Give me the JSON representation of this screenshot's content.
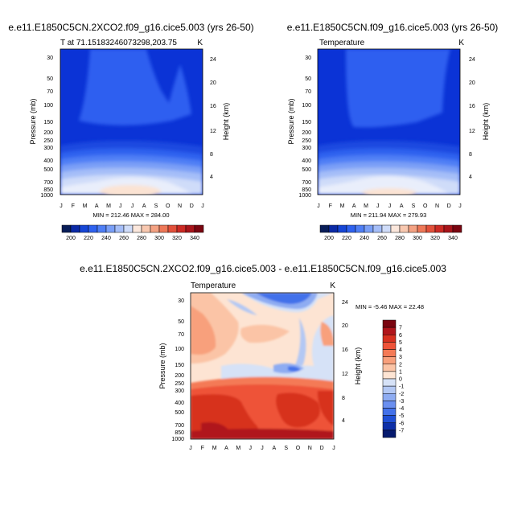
{
  "chart_data": [
    {
      "type": "heatmap",
      "title": "e.e11.E1850C5CN.2XCO2.f09_g16.cice5.003 (yrs 26-50)",
      "subtitle_left": "T at 71.15183246073298,203.75",
      "subtitle_right": "K",
      "xlabel": "",
      "ylabel": "Pressure (mb)",
      "ylabel_right": "Height (km)",
      "x_ticks": [
        "J",
        "F",
        "M",
        "A",
        "M",
        "J",
        "J",
        "A",
        "S",
        "O",
        "N",
        "D",
        "J"
      ],
      "y_ticks": [
        "30",
        "50",
        "70",
        "100",
        "150",
        "200",
        "250",
        "300",
        "400",
        "500",
        "700",
        "850",
        "1000"
      ],
      "y_ticks_right": [
        "24",
        "20",
        "16",
        "12",
        "8",
        "4"
      ],
      "min": 212.46,
      "max": 284.0,
      "stats_label": "MIN = 212.46  MAX = 284.00",
      "colorbar": {
        "orientation": "horizontal",
        "labels": [
          "200",
          "220",
          "240",
          "260",
          "280",
          "300",
          "320",
          "340"
        ],
        "colors": [
          "#081d58",
          "#0b2aa6",
          "#1646d6",
          "#2f62ef",
          "#4f7ff5",
          "#7a9ff7",
          "#a5bef8",
          "#cfdcf9",
          "#fbe7dc",
          "#f8c8b0",
          "#f4a283",
          "#ee7858",
          "#e2503a",
          "#cc2a24",
          "#a8141a",
          "#7a0510"
        ]
      }
    },
    {
      "type": "heatmap",
      "title": "e.e11.E1850C5CN.f09_g16.cice5.003 (yrs 26-50)",
      "subtitle_left": "Temperature",
      "subtitle_right": "K",
      "xlabel": "",
      "ylabel": "Pressure (mb)",
      "ylabel_right": "Height (km)",
      "x_ticks": [
        "J",
        "F",
        "M",
        "A",
        "M",
        "J",
        "J",
        "A",
        "S",
        "O",
        "N",
        "D",
        "J"
      ],
      "y_ticks": [
        "30",
        "50",
        "70",
        "100",
        "150",
        "200",
        "250",
        "300",
        "400",
        "500",
        "700",
        "850",
        "1000"
      ],
      "y_ticks_right": [
        "24",
        "20",
        "16",
        "12",
        "8",
        "4"
      ],
      "min": 211.94,
      "max": 279.93,
      "stats_label": "MIN = 211.94  MAX = 279.93",
      "colorbar": {
        "orientation": "horizontal",
        "labels": [
          "200",
          "220",
          "240",
          "260",
          "280",
          "300",
          "320",
          "340"
        ],
        "colors": [
          "#081d58",
          "#0b2aa6",
          "#1646d6",
          "#2f62ef",
          "#4f7ff5",
          "#7a9ff7",
          "#a5bef8",
          "#cfdcf9",
          "#fbe7dc",
          "#f8c8b0",
          "#f4a283",
          "#ee7858",
          "#e2503a",
          "#cc2a24",
          "#a8141a",
          "#7a0510"
        ]
      }
    },
    {
      "type": "heatmap",
      "title": "e.e11.E1850C5CN.2XCO2.f09_g16.cice5.003 - e.e11.E1850C5CN.f09_g16.cice5.003",
      "subtitle_left": "Temperature",
      "subtitle_right": "K",
      "xlabel": "",
      "ylabel": "Pressure (mb)",
      "ylabel_right": "Height (km)",
      "x_ticks": [
        "J",
        "F",
        "M",
        "A",
        "M",
        "J",
        "J",
        "A",
        "S",
        "O",
        "N",
        "D",
        "J"
      ],
      "y_ticks": [
        "30",
        "50",
        "70",
        "100",
        "150",
        "200",
        "250",
        "300",
        "400",
        "500",
        "700",
        "850",
        "1000"
      ],
      "y_ticks_right": [
        "24",
        "20",
        "16",
        "12",
        "8",
        "4"
      ],
      "min": -5.46,
      "max": 22.48,
      "stats_label": "MIN = -5.46  MAX =  22.48",
      "colorbar": {
        "orientation": "vertical",
        "labels": [
          "7",
          "6",
          "5",
          "4",
          "3",
          "2",
          "1",
          "0",
          "-1",
          "-2",
          "-3",
          "-4",
          "-5",
          "-6",
          "-7"
        ],
        "colors": [
          "#7a0510",
          "#b0151b",
          "#d7301f",
          "#ee5338",
          "#f47a56",
          "#f8a07c",
          "#fbc4a6",
          "#fde4d3",
          "#d6e2f7",
          "#b3c8f4",
          "#8eacf2",
          "#6a8ff0",
          "#4371ea",
          "#1f4fd6",
          "#0d2fa8",
          "#061a6e"
        ]
      }
    }
  ]
}
